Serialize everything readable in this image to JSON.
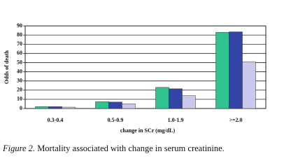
{
  "chart_data": {
    "type": "bar",
    "y_label": "Odds of death",
    "x_label": "change in SCr (mg/dL)",
    "categories": [
      "0.3-0.4",
      "0.5-0.9",
      "1.0-1.9",
      ">=2.0"
    ],
    "series": [
      {
        "color": "#2fc48f",
        "values": [
          2,
          7.5,
          23,
          83
        ]
      },
      {
        "color": "#3343a6",
        "values": [
          2,
          7,
          21.5,
          83.5
        ]
      },
      {
        "color": "#c9c9ee",
        "values": [
          1.5,
          5,
          14,
          51
        ]
      }
    ],
    "ylim": [
      0,
      90
    ],
    "yticks": [
      0,
      10,
      20,
      30,
      40,
      50,
      60,
      70,
      80,
      90
    ],
    "grid": true
  },
  "caption_label": "Figure 2.",
  "caption": "Mortality associated with change in serum creatinine."
}
